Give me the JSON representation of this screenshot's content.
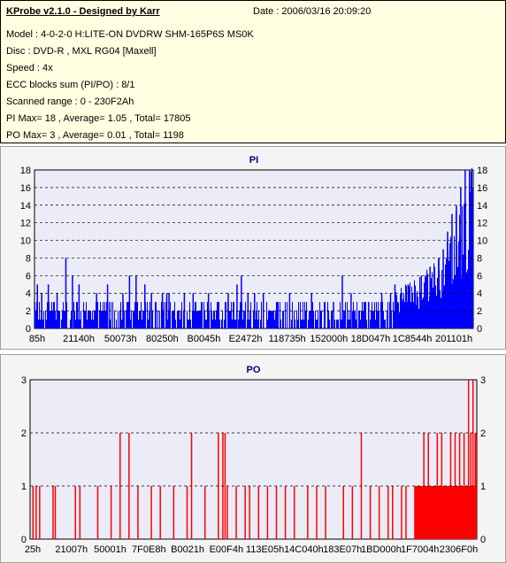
{
  "info": {
    "title": "KProbe v2.1.0 - Designed by Karr",
    "date": "Date : 2006/03/16 20:09:20",
    "lines": [
      "Model : 4-0-2-0 H:LITE-ON DVDRW SHM-165P6S MS0K",
      "Disc : DVD-R , MXL RG04 [Maxell]",
      "Speed : 4x",
      "ECC blocks sum (PI/PO) : 8/1",
      "Scanned range : 0 - 230F2Ah",
      "PI Max= 18 , Average= 1.05 , Total= 17805",
      "PO Max= 3 , Average= 0.01 , Total= 1198"
    ]
  },
  "colors": {
    "pi": "#0000ff",
    "po": "#ff0000",
    "plot_bg": "#ececf8",
    "title": "#000080"
  },
  "chart_data": [
    {
      "type": "bar",
      "title": "PI",
      "ylim": [
        0,
        18
      ],
      "yticks": [
        0,
        2,
        4,
        6,
        8,
        10,
        12,
        14,
        16,
        18
      ],
      "xticks": [
        "85h",
        "21140h",
        "50073h",
        "80250h",
        "B0045h",
        "E2472h",
        "118735h",
        "152000h",
        "18D047h",
        "1C8544h",
        "201101h"
      ],
      "x_range": [
        0,
        1
      ],
      "grid": "dashed-horizontal",
      "series": [
        {
          "values_baseline": [
            2,
            3
          ],
          "spikes": [
            [
              0.005,
              5
            ],
            [
              0.015,
              4
            ],
            [
              0.03,
              5
            ],
            [
              0.05,
              4
            ],
            [
              0.07,
              8
            ],
            [
              0.085,
              6
            ],
            [
              0.1,
              5
            ],
            [
              0.14,
              4
            ],
            [
              0.165,
              5
            ],
            [
              0.2,
              4
            ],
            [
              0.215,
              6
            ],
            [
              0.23,
              6
            ],
            [
              0.25,
              5
            ],
            [
              0.265,
              4
            ],
            [
              0.29,
              4
            ],
            [
              0.3,
              4
            ],
            [
              0.305,
              4
            ],
            [
              0.34,
              4
            ],
            [
              0.36,
              4
            ],
            [
              0.395,
              4
            ],
            [
              0.44,
              4
            ],
            [
              0.46,
              5
            ],
            [
              0.47,
              6
            ],
            [
              0.485,
              4
            ],
            [
              0.5,
              4
            ],
            [
              0.52,
              4
            ],
            [
              0.58,
              4
            ],
            [
              0.63,
              4
            ],
            [
              0.68,
              3
            ],
            [
              0.7,
              6
            ],
            [
              0.72,
              4
            ],
            [
              0.76,
              3
            ],
            [
              0.79,
              4
            ],
            [
              0.81,
              4
            ],
            [
              0.82,
              5
            ],
            [
              0.835,
              4
            ],
            [
              0.85,
              5
            ],
            [
              0.86,
              4
            ],
            [
              0.87,
              4
            ],
            [
              0.88,
              6
            ],
            [
              0.89,
              6
            ],
            [
              0.9,
              7
            ],
            [
              0.91,
              7
            ],
            [
              0.92,
              8
            ],
            [
              0.93,
              9
            ],
            [
              0.94,
              11
            ],
            [
              0.95,
              13
            ],
            [
              0.96,
              14
            ],
            [
              0.97,
              16
            ],
            [
              0.98,
              18
            ],
            [
              0.99,
              18
            ],
            [
              1.0,
              16
            ]
          ],
          "trend": [
            [
              0.82,
              3
            ],
            [
              0.86,
              4
            ],
            [
              0.9,
              5
            ],
            [
              0.93,
              7
            ],
            [
              0.96,
              10
            ],
            [
              1.0,
              14
            ]
          ]
        }
      ]
    },
    {
      "type": "bar",
      "title": "PO",
      "ylim": [
        0,
        3
      ],
      "yticks": [
        0,
        1,
        2,
        3
      ],
      "xticks": [
        "25h",
        "21007h",
        "50001h",
        "7F0E8h",
        "B0021h",
        "E00F4h",
        "113E05h",
        "14C040h",
        "183E07h",
        "1BD000h",
        "1F7004h",
        "2306F0h"
      ],
      "x_range": [
        0,
        1
      ],
      "grid": "dashed-horizontal",
      "series": [
        {
          "spikes": [
            [
              0.005,
              1
            ],
            [
              0.012,
              1
            ],
            [
              0.02,
              1
            ],
            [
              0.05,
              1
            ],
            [
              0.055,
              1
            ],
            [
              0.1,
              1
            ],
            [
              0.11,
              1
            ],
            [
              0.15,
              1
            ],
            [
              0.18,
              1
            ],
            [
              0.2,
              2
            ],
            [
              0.22,
              2
            ],
            [
              0.24,
              1
            ],
            [
              0.27,
              1
            ],
            [
              0.29,
              1
            ],
            [
              0.32,
              1
            ],
            [
              0.35,
              1
            ],
            [
              0.36,
              2
            ],
            [
              0.39,
              1
            ],
            [
              0.42,
              2
            ],
            [
              0.43,
              2
            ],
            [
              0.435,
              2
            ],
            [
              0.44,
              1
            ],
            [
              0.46,
              1
            ],
            [
              0.48,
              1
            ],
            [
              0.49,
              1
            ],
            [
              0.51,
              1
            ],
            [
              0.53,
              1
            ],
            [
              0.55,
              1
            ],
            [
              0.57,
              1
            ],
            [
              0.59,
              1
            ],
            [
              0.62,
              1
            ],
            [
              0.64,
              1
            ],
            [
              0.66,
              1
            ],
            [
              0.7,
              1
            ],
            [
              0.72,
              1
            ],
            [
              0.74,
              2
            ],
            [
              0.76,
              1
            ],
            [
              0.78,
              1
            ],
            [
              0.8,
              1
            ],
            [
              0.81,
              1
            ],
            [
              0.83,
              1
            ],
            [
              0.84,
              1
            ],
            [
              0.86,
              1
            ],
            [
              0.88,
              2
            ],
            [
              0.89,
              2
            ],
            [
              0.9,
              1
            ],
            [
              0.91,
              2
            ],
            [
              0.92,
              2
            ],
            [
              0.93,
              1
            ],
            [
              0.94,
              2
            ],
            [
              0.95,
              2
            ],
            [
              0.96,
              2
            ],
            [
              0.965,
              1
            ],
            [
              0.97,
              2
            ],
            [
              0.975,
              1
            ],
            [
              0.98,
              3
            ],
            [
              0.985,
              2
            ],
            [
              0.99,
              3
            ],
            [
              0.995,
              2
            ],
            [
              1.0,
              2
            ]
          ],
          "dense_band": [
            0.86,
            1.0,
            1
          ]
        }
      ]
    }
  ]
}
